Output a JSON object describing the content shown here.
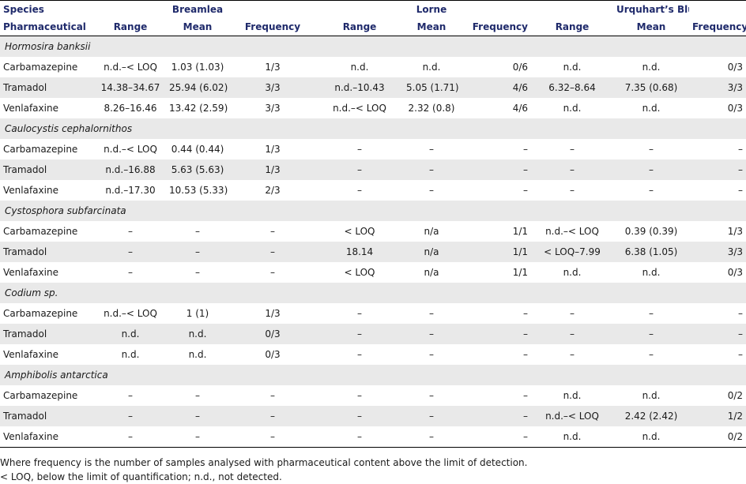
{
  "headers": {
    "species": "Species",
    "pharmaceutical": "Pharmaceutical",
    "sites": [
      "Breamlea",
      "Lorne",
      "Urquhart’s Bluff"
    ],
    "sub": [
      "Range",
      "Mean",
      "Frequency"
    ]
  },
  "groups": [
    {
      "species": "Hormosira banksii",
      "rows": [
        {
          "name": "Carbamazepine",
          "cells": [
            "n.d.–< LOQ",
            "1.03 (1.03)",
            "1/3",
            "n.d.",
            "n.d.",
            "0/6",
            "n.d.",
            "n.d.",
            "0/3"
          ]
        },
        {
          "name": "Tramadol",
          "cells": [
            "14.38–34.67",
            "25.94 (6.02)",
            "3/3",
            "n.d.–10.43",
            "5.05 (1.71)",
            "4/6",
            "6.32–8.64",
            "7.35 (0.68)",
            "3/3"
          ]
        },
        {
          "name": "Venlafaxine",
          "cells": [
            "8.26–16.46",
            "13.42 (2.59)",
            "3/3",
            "n.d.–< LOQ",
            "2.32 (0.8)",
            "4/6",
            "n.d.",
            "n.d.",
            "0/3"
          ]
        }
      ]
    },
    {
      "species": "Caulocystis cephalornithos",
      "rows": [
        {
          "name": "Carbamazepine",
          "cells": [
            "n.d.–< LOQ",
            "0.44 (0.44)",
            "1/3",
            "–",
            "–",
            "–",
            "–",
            "–",
            "–"
          ]
        },
        {
          "name": "Tramadol",
          "cells": [
            "n.d.–16.88",
            "5.63 (5.63)",
            "1/3",
            "–",
            "–",
            "–",
            "–",
            "–",
            "–"
          ]
        },
        {
          "name": "Venlafaxine",
          "cells": [
            "n.d.–17.30",
            "10.53 (5.33)",
            "2/3",
            "–",
            "–",
            "–",
            "–",
            "–",
            "–"
          ]
        }
      ]
    },
    {
      "species": "Cystosphora subfarcinata",
      "rows": [
        {
          "name": "Carbamazepine",
          "cells": [
            "–",
            "–",
            "–",
            "< LOQ",
            "n/a",
            "1/1",
            "n.d.–< LOQ",
            "0.39 (0.39)",
            "1/3"
          ]
        },
        {
          "name": "Tramadol",
          "cells": [
            "–",
            "–",
            "–",
            "18.14",
            "n/a",
            "1/1",
            "< LOQ–7.99",
            "6.38 (1.05)",
            "3/3"
          ]
        },
        {
          "name": "Venlafaxine",
          "cells": [
            "–",
            "–",
            "–",
            "< LOQ",
            "n/a",
            "1/1",
            "n.d.",
            "n.d.",
            "0/3"
          ]
        }
      ]
    },
    {
      "species": "Codium sp.",
      "rows": [
        {
          "name": "Carbamazepine",
          "cells": [
            "n.d.–< LOQ",
            "1 (1)",
            "1/3",
            "–",
            "–",
            "–",
            "–",
            "–",
            "–"
          ]
        },
        {
          "name": "Tramadol",
          "cells": [
            "n.d.",
            "n.d.",
            "0/3",
            "–",
            "–",
            "–",
            "–",
            "–",
            "–"
          ]
        },
        {
          "name": "Venlafaxine",
          "cells": [
            "n.d.",
            "n.d.",
            "0/3",
            "–",
            "–",
            "–",
            "–",
            "–",
            "–"
          ]
        }
      ]
    },
    {
      "species": "Amphibolis antarctica",
      "rows": [
        {
          "name": "Carbamazepine",
          "cells": [
            "–",
            "–",
            "–",
            "–",
            "–",
            "–",
            "n.d.",
            "n.d.",
            "0/2"
          ]
        },
        {
          "name": "Tramadol",
          "cells": [
            "–",
            "–",
            "–",
            "–",
            "–",
            "–",
            "n.d.–< LOQ",
            "2.42 (2.42)",
            "1/2"
          ]
        },
        {
          "name": "Venlafaxine",
          "cells": [
            "–",
            "–",
            "–",
            "–",
            "–",
            "–",
            "n.d.",
            "n.d.",
            "0/2"
          ]
        }
      ]
    }
  ],
  "notes": [
    "Where frequency is the number of samples analysed with pharmaceutical content above the limit of detection.",
    "< LOQ, below the limit of quantification; n.d., not detected."
  ]
}
